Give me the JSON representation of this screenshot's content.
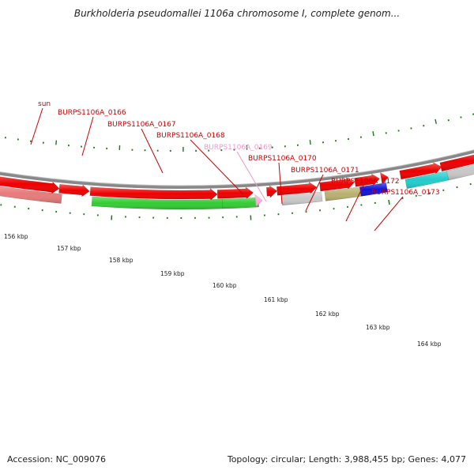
{
  "title": "Burkholderia pseudomallei 1106a chromosome I, complete genom...",
  "footer": {
    "accession": "Accession: NC_009076",
    "summary": "Topology: circular; Length: 3,988,455 bp; Genes: 4,077"
  },
  "scale_labels": [
    "156 kbp",
    "157 kbp",
    "158 kbp",
    "159 kbp",
    "160 kbp",
    "161 kbp",
    "162 kbp",
    "163 kbp",
    "164 kbp"
  ],
  "gene_labels": [
    {
      "text": "sun",
      "color": "#cc0000"
    },
    {
      "text": "BURPS1106A_0166",
      "color": "#cc0000"
    },
    {
      "text": "BURPS1106A_0167",
      "color": "#cc0000"
    },
    {
      "text": "BURPS1106A_0168",
      "color": "#cc0000"
    },
    {
      "text": "BURPS1106A_0169",
      "color": "#ee99cc"
    },
    {
      "text": "BURPS1106A_0170",
      "color": "#cc0000"
    },
    {
      "text": "BURPS1106A_0171",
      "color": "#cc0000"
    },
    {
      "text": "BURPS1106A_0172",
      "color": "#cc0000"
    },
    {
      "text": "BURPS1106A_0173",
      "color": "#cc0000"
    }
  ],
  "colors": {
    "cds": "#ee0000",
    "backbone": "#888888",
    "tick": "#1a7a1a",
    "sun": "#e87a7a",
    "green": "#33cc33",
    "grey": "#c8c8c8",
    "olive": "#b8b070",
    "blue": "#1111dd",
    "cyan": "#22cccc",
    "pink": "#ffaadd"
  }
}
